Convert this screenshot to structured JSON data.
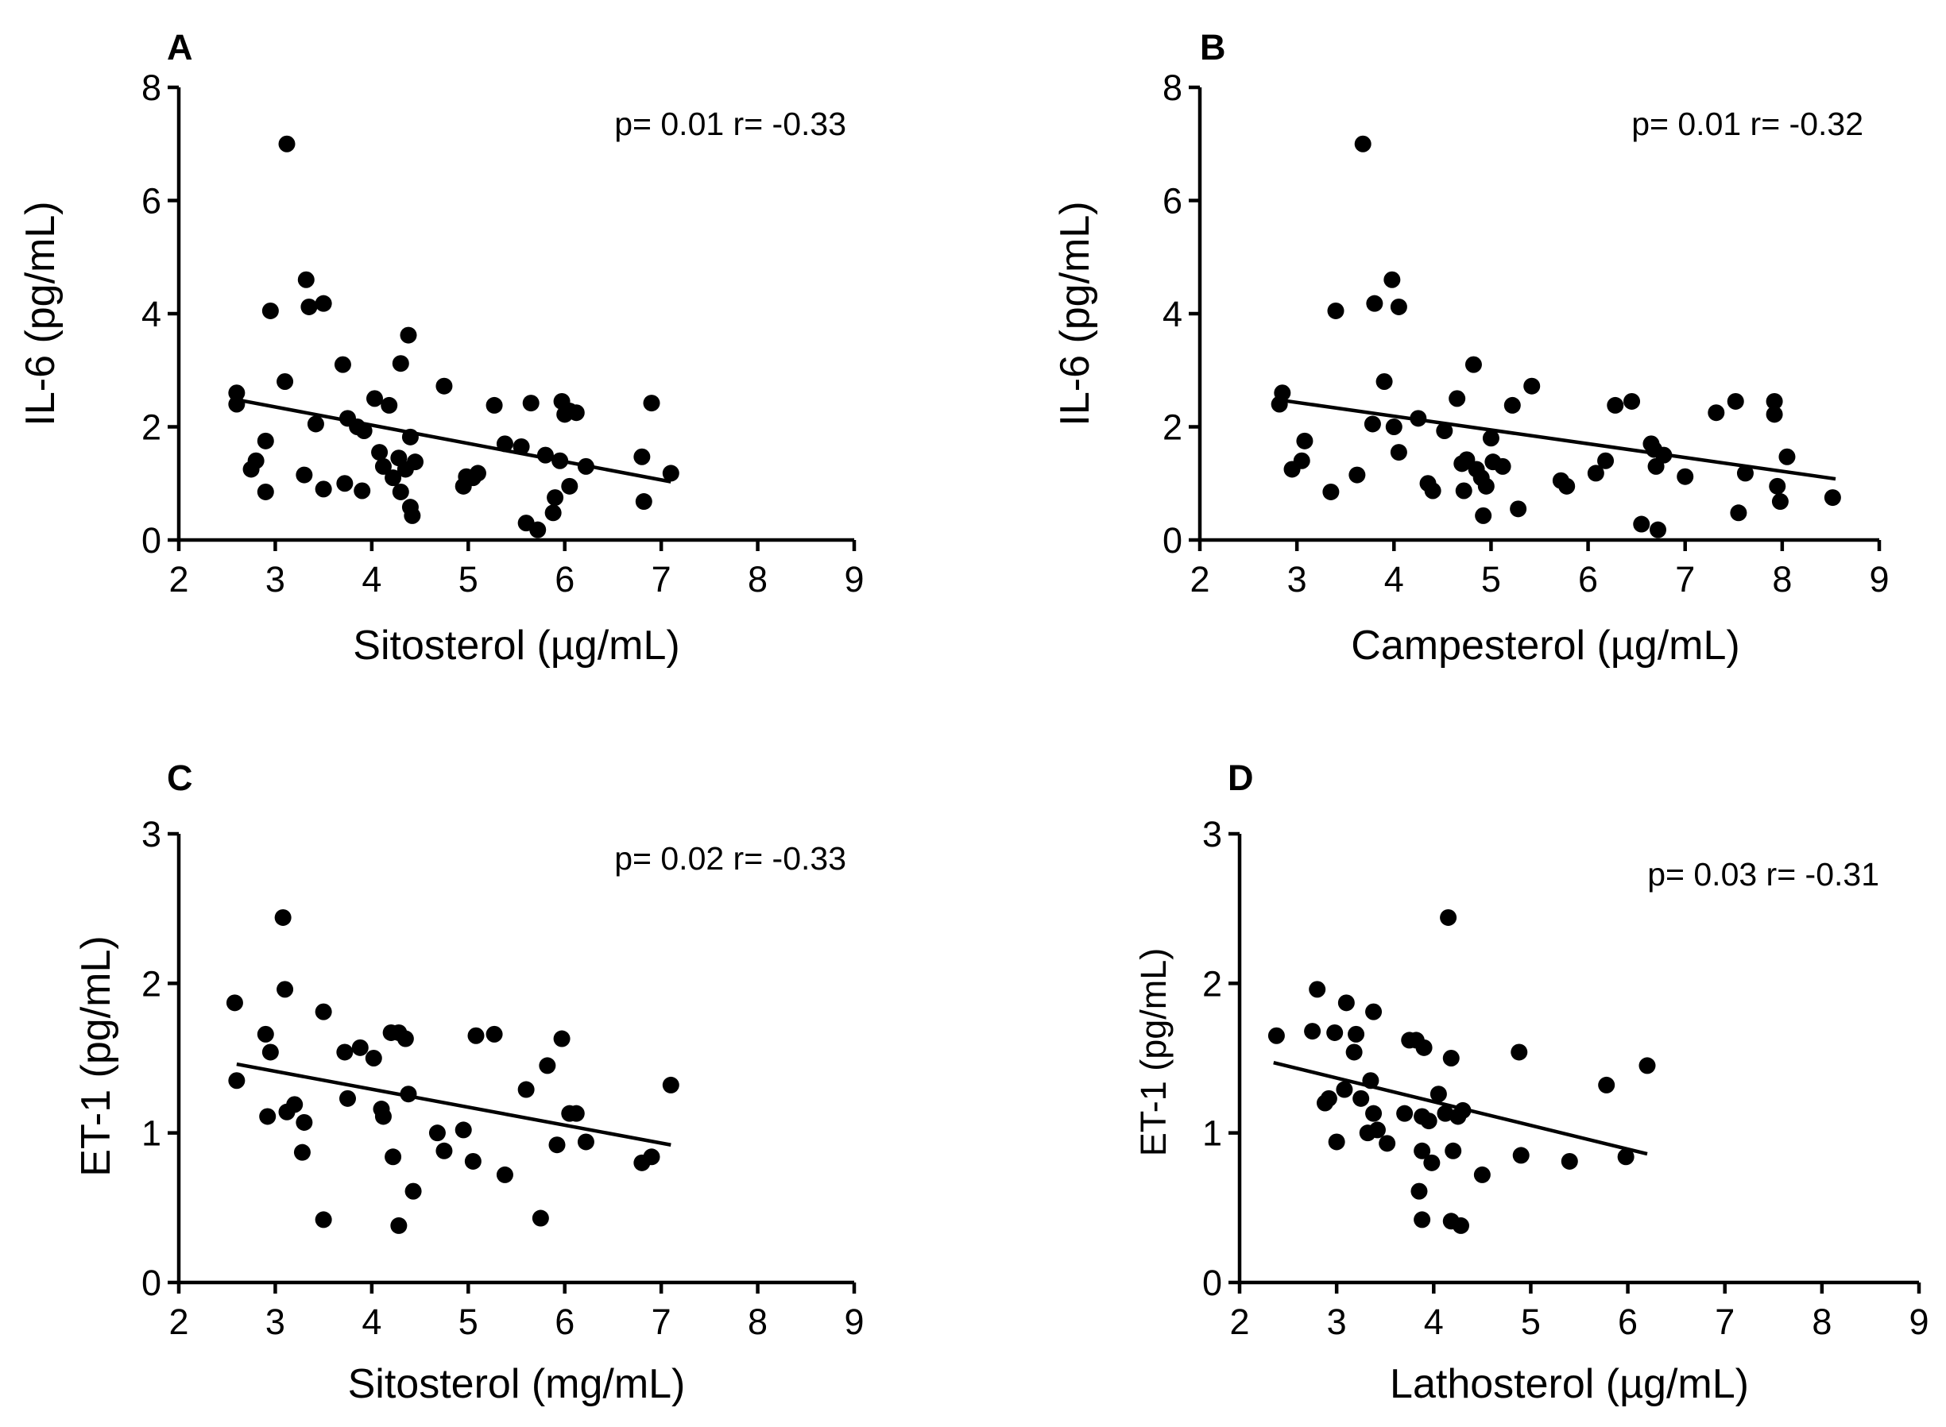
{
  "chart_data": [
    {
      "panel": "A",
      "type": "scatter",
      "stats": "p= 0.01  r= -0.33",
      "xlabel": "Sitosterol (µg/mL)",
      "ylabel": "IL-6 (pg/mL)",
      "xlim": [
        2,
        9
      ],
      "ylim": [
        0,
        8
      ],
      "xticks": [
        2,
        3,
        4,
        5,
        6,
        7,
        8,
        9
      ],
      "yticks": [
        0,
        2,
        4,
        6,
        8
      ],
      "fit_line": [
        [
          2.6,
          2.48
        ],
        [
          7.1,
          1.03
        ]
      ],
      "points": [
        [
          2.6,
          2.6
        ],
        [
          2.6,
          2.4
        ],
        [
          2.75,
          1.25
        ],
        [
          2.8,
          1.4
        ],
        [
          2.9,
          0.85
        ],
        [
          2.9,
          1.75
        ],
        [
          2.95,
          4.05
        ],
        [
          3.1,
          2.8
        ],
        [
          3.12,
          7.0
        ],
        [
          3.3,
          1.15
        ],
        [
          3.32,
          4.6
        ],
        [
          3.35,
          4.12
        ],
        [
          3.42,
          2.05
        ],
        [
          3.5,
          4.18
        ],
        [
          3.5,
          0.9
        ],
        [
          3.7,
          3.1
        ],
        [
          3.72,
          1.0
        ],
        [
          3.75,
          2.15
        ],
        [
          3.85,
          2.0
        ],
        [
          3.9,
          0.87
        ],
        [
          3.92,
          1.93
        ],
        [
          4.03,
          2.5
        ],
        [
          4.08,
          1.55
        ],
        [
          4.12,
          1.3
        ],
        [
          4.18,
          2.38
        ],
        [
          4.22,
          1.1
        ],
        [
          4.28,
          1.45
        ],
        [
          4.3,
          3.12
        ],
        [
          4.3,
          0.85
        ],
        [
          4.35,
          1.25
        ],
        [
          4.38,
          3.62
        ],
        [
          4.4,
          1.82
        ],
        [
          4.4,
          0.58
        ],
        [
          4.42,
          0.43
        ],
        [
          4.45,
          1.38
        ],
        [
          4.75,
          2.72
        ],
        [
          4.95,
          0.95
        ],
        [
          4.98,
          1.12
        ],
        [
          5.05,
          1.1
        ],
        [
          5.1,
          1.18
        ],
        [
          5.27,
          2.38
        ],
        [
          5.38,
          1.7
        ],
        [
          5.55,
          1.65
        ],
        [
          5.6,
          0.3
        ],
        [
          5.65,
          2.42
        ],
        [
          5.72,
          0.18
        ],
        [
          5.8,
          1.5
        ],
        [
          5.88,
          0.48
        ],
        [
          5.9,
          0.75
        ],
        [
          5.95,
          1.4
        ],
        [
          5.97,
          2.45
        ],
        [
          6.0,
          2.22
        ],
        [
          6.05,
          2.28
        ],
        [
          6.05,
          0.95
        ],
        [
          6.12,
          2.25
        ],
        [
          6.22,
          1.3
        ],
        [
          6.8,
          1.47
        ],
        [
          6.82,
          0.68
        ],
        [
          6.9,
          2.42
        ],
        [
          7.1,
          1.18
        ]
      ]
    },
    {
      "panel": "B",
      "type": "scatter",
      "stats": "p= 0.01  r= -0.32",
      "xlabel": "Campesterol (µg/mL)",
      "ylabel": "IL-6 (pg/mL)",
      "xlim": [
        2,
        9
      ],
      "ylim": [
        0,
        8
      ],
      "xticks": [
        2,
        3,
        4,
        5,
        6,
        7,
        8,
        9
      ],
      "yticks": [
        0,
        2,
        4,
        6,
        8
      ],
      "fit_line": [
        [
          2.8,
          2.48
        ],
        [
          8.55,
          1.08
        ]
      ],
      "points": [
        [
          2.82,
          2.4
        ],
        [
          2.85,
          2.6
        ],
        [
          2.95,
          1.25
        ],
        [
          3.05,
          1.4
        ],
        [
          3.08,
          1.75
        ],
        [
          3.35,
          0.85
        ],
        [
          3.4,
          4.05
        ],
        [
          3.62,
          1.15
        ],
        [
          3.68,
          7.0
        ],
        [
          3.78,
          2.05
        ],
        [
          3.8,
          4.18
        ],
        [
          3.9,
          2.8
        ],
        [
          3.98,
          4.6
        ],
        [
          4.0,
          2.0
        ],
        [
          4.05,
          4.12
        ],
        [
          4.05,
          1.55
        ],
        [
          4.25,
          2.15
        ],
        [
          4.35,
          1.0
        ],
        [
          4.4,
          0.87
        ],
        [
          4.52,
          1.93
        ],
        [
          4.65,
          2.5
        ],
        [
          4.7,
          1.35
        ],
        [
          4.72,
          0.87
        ],
        [
          4.75,
          1.42
        ],
        [
          4.82,
          3.1
        ],
        [
          4.85,
          1.25
        ],
        [
          4.9,
          1.1
        ],
        [
          4.92,
          0.43
        ],
        [
          4.95,
          0.95
        ],
        [
          5.0,
          1.8
        ],
        [
          5.02,
          1.38
        ],
        [
          5.12,
          1.3
        ],
        [
          5.22,
          2.38
        ],
        [
          5.28,
          0.55
        ],
        [
          5.42,
          2.72
        ],
        [
          5.72,
          1.05
        ],
        [
          5.78,
          0.95
        ],
        [
          6.08,
          1.18
        ],
        [
          6.18,
          1.4
        ],
        [
          6.28,
          2.38
        ],
        [
          6.45,
          2.45
        ],
        [
          6.55,
          0.28
        ],
        [
          6.65,
          1.7
        ],
        [
          6.68,
          1.6
        ],
        [
          6.7,
          1.3
        ],
        [
          6.72,
          0.18
        ],
        [
          6.78,
          1.5
        ],
        [
          7.0,
          1.12
        ],
        [
          7.32,
          2.25
        ],
        [
          7.52,
          2.45
        ],
        [
          7.55,
          0.48
        ],
        [
          7.62,
          1.18
        ],
        [
          7.92,
          2.45
        ],
        [
          7.92,
          2.22
        ],
        [
          7.95,
          0.95
        ],
        [
          7.98,
          0.68
        ],
        [
          8.05,
          1.47
        ],
        [
          8.52,
          0.75
        ]
      ]
    },
    {
      "panel": "C",
      "type": "scatter",
      "stats": "p= 0.02  r= -0.33",
      "xlabel": "Sitosterol (mg/mL)",
      "ylabel": "ET-1 (pg/mL)",
      "xlim": [
        2,
        9
      ],
      "ylim": [
        0,
        3
      ],
      "xticks": [
        2,
        3,
        4,
        5,
        6,
        7,
        8,
        9
      ],
      "yticks": [
        0,
        1,
        2,
        3
      ],
      "fit_line": [
        [
          2.6,
          1.46
        ],
        [
          7.1,
          0.92
        ]
      ],
      "points": [
        [
          2.58,
          1.87
        ],
        [
          2.6,
          1.35
        ],
        [
          2.9,
          1.66
        ],
        [
          2.92,
          1.11
        ],
        [
          2.95,
          1.54
        ],
        [
          3.08,
          2.44
        ],
        [
          3.1,
          1.96
        ],
        [
          3.12,
          1.14
        ],
        [
          3.2,
          1.19
        ],
        [
          3.28,
          0.87
        ],
        [
          3.3,
          1.07
        ],
        [
          3.5,
          1.81
        ],
        [
          3.5,
          0.42
        ],
        [
          3.72,
          1.54
        ],
        [
          3.75,
          1.23
        ],
        [
          3.88,
          1.57
        ],
        [
          4.02,
          1.5
        ],
        [
          4.1,
          1.16
        ],
        [
          4.12,
          1.11
        ],
        [
          4.22,
          0.84
        ],
        [
          4.2,
          1.67
        ],
        [
          4.28,
          1.67
        ],
        [
          4.28,
          0.38
        ],
        [
          4.35,
          1.63
        ],
        [
          4.38,
          1.26
        ],
        [
          4.43,
          0.61
        ],
        [
          4.68,
          1.0
        ],
        [
          4.75,
          0.88
        ],
        [
          4.95,
          1.02
        ],
        [
          5.05,
          0.81
        ],
        [
          5.08,
          1.65
        ],
        [
          5.27,
          1.66
        ],
        [
          5.38,
          0.72
        ],
        [
          5.6,
          1.29
        ],
        [
          5.75,
          0.43
        ],
        [
          5.82,
          1.45
        ],
        [
          5.92,
          0.92
        ],
        [
          5.97,
          1.63
        ],
        [
          6.05,
          1.13
        ],
        [
          6.12,
          1.13
        ],
        [
          6.22,
          0.94
        ],
        [
          6.8,
          0.8
        ],
        [
          6.9,
          0.84
        ],
        [
          7.1,
          1.32
        ]
      ]
    },
    {
      "panel": "D",
      "type": "scatter",
      "stats": "p= 0.03 r= -0.31",
      "xlabel": "Lathosterol  (µg/mL)",
      "ylabel": "ET-1 (pg/mL)",
      "xlim": [
        2,
        9
      ],
      "ylim": [
        0,
        3
      ],
      "xticks": [
        2,
        3,
        4,
        5,
        6,
        7,
        8,
        9
      ],
      "yticks": [
        0,
        1,
        2,
        3
      ],
      "fit_line": [
        [
          2.35,
          1.47
        ],
        [
          6.2,
          0.86
        ]
      ],
      "points": [
        [
          2.38,
          1.65
        ],
        [
          2.75,
          1.68
        ],
        [
          2.8,
          1.96
        ],
        [
          2.88,
          1.2
        ],
        [
          2.92,
          1.23
        ],
        [
          2.98,
          1.67
        ],
        [
          3.0,
          0.94
        ],
        [
          3.08,
          1.29
        ],
        [
          3.1,
          1.87
        ],
        [
          3.18,
          1.54
        ],
        [
          3.2,
          1.66
        ],
        [
          3.25,
          1.23
        ],
        [
          3.32,
          1.0
        ],
        [
          3.35,
          1.35
        ],
        [
          3.38,
          1.81
        ],
        [
          3.38,
          1.13
        ],
        [
          3.42,
          1.02
        ],
        [
          3.52,
          0.93
        ],
        [
          3.7,
          1.13
        ],
        [
          3.75,
          1.62
        ],
        [
          3.82,
          1.62
        ],
        [
          3.85,
          0.61
        ],
        [
          3.88,
          0.42
        ],
        [
          3.88,
          1.11
        ],
        [
          3.88,
          0.88
        ],
        [
          3.9,
          1.57
        ],
        [
          3.95,
          1.08
        ],
        [
          3.98,
          0.8
        ],
        [
          4.05,
          1.26
        ],
        [
          4.12,
          1.13
        ],
        [
          4.15,
          2.44
        ],
        [
          4.18,
          0.41
        ],
        [
          4.18,
          1.5
        ],
        [
          4.2,
          0.88
        ],
        [
          4.25,
          1.11
        ],
        [
          4.28,
          0.38
        ],
        [
          4.3,
          1.15
        ],
        [
          4.5,
          0.72
        ],
        [
          4.88,
          1.54
        ],
        [
          4.9,
          0.85
        ],
        [
          5.4,
          0.81
        ],
        [
          5.78,
          1.32
        ],
        [
          5.98,
          0.84
        ],
        [
          6.2,
          1.45
        ]
      ]
    }
  ]
}
